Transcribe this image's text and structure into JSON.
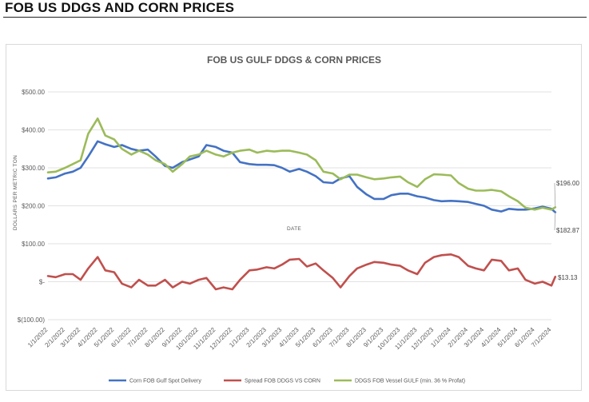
{
  "page": {
    "title": "FOB US DDGS AND CORN PRICES"
  },
  "chart_data": {
    "type": "line",
    "title": "FOB US GULF DDGS & CORN PRICES",
    "xlabel": "DATE",
    "ylabel": "DOLLARS PER METRIC TON",
    "ylim": [
      -100,
      500
    ],
    "y_ticks": [
      -100,
      0,
      100,
      200,
      300,
      400,
      500
    ],
    "y_tick_labels": [
      "$(100.00)",
      "$-",
      "$100.00",
      "$200.00",
      "$300.00",
      "$400.00",
      "$500.00"
    ],
    "x_start": "1/1/2022",
    "x_end": "7/1/2024",
    "x_tick_labels": [
      "1/1/2022",
      "2/1/2022",
      "3/1/2022",
      "4/1/2022",
      "5/1/2022",
      "6/1/2022",
      "7/1/2022",
      "8/1/2022",
      "9/1/2022",
      "10/1/2022",
      "11/1/2022",
      "12/1/2022",
      "1/1/2023",
      "2/1/2023",
      "3/1/2023",
      "4/1/2023",
      "5/1/2023",
      "6/1/2023",
      "7/1/2023",
      "8/1/2023",
      "9/1/2023",
      "10/1/2023",
      "11/1/2023",
      "12/1/2023",
      "1/1/2024",
      "2/1/2024",
      "3/1/2024",
      "4/1/2024",
      "5/1/2024",
      "6/1/2024",
      "7/1/2024"
    ],
    "grid": true,
    "legend_position": "bottom",
    "x": [
      "1/1/2022",
      "1/15/2022",
      "2/1/2022",
      "2/15/2022",
      "3/1/2022",
      "3/15/2022",
      "4/1/2022",
      "4/15/2022",
      "5/1/2022",
      "5/15/2022",
      "6/1/2022",
      "6/15/2022",
      "7/1/2022",
      "7/15/2022",
      "8/1/2022",
      "8/15/2022",
      "9/1/2022",
      "9/15/2022",
      "10/1/2022",
      "10/15/2022",
      "11/1/2022",
      "11/15/2022",
      "12/1/2022",
      "12/15/2022",
      "1/1/2023",
      "1/15/2023",
      "2/1/2023",
      "2/15/2023",
      "3/1/2023",
      "3/15/2023",
      "4/1/2023",
      "4/15/2023",
      "5/1/2023",
      "5/15/2023",
      "6/1/2023",
      "6/15/2023",
      "7/1/2023",
      "7/15/2023",
      "8/1/2023",
      "8/15/2023",
      "9/1/2023",
      "9/15/2023",
      "10/1/2023",
      "10/15/2023",
      "11/1/2023",
      "11/15/2023",
      "12/1/2023",
      "12/15/2023",
      "1/1/2024",
      "1/15/2024",
      "2/1/2024",
      "2/15/2024",
      "3/1/2024",
      "3/15/2024",
      "4/1/2024",
      "4/15/2024",
      "5/1/2024",
      "5/15/2024",
      "6/1/2024",
      "6/15/2024",
      "7/1/2024",
      "7/8/2024"
    ],
    "series": [
      {
        "name": "Corn FOB Gulf Spot Delivery",
        "color": "#4472c4",
        "values": [
          272,
          275,
          285,
          290,
          300,
          330,
          370,
          362,
          355,
          360,
          350,
          345,
          348,
          330,
          305,
          300,
          315,
          322,
          330,
          360,
          355,
          345,
          340,
          315,
          310,
          308,
          308,
          307,
          300,
          290,
          297,
          290,
          278,
          262,
          260,
          272,
          278,
          250,
          230,
          218,
          218,
          228,
          232,
          232,
          225,
          222,
          215,
          212,
          213,
          212,
          210,
          205,
          200,
          190,
          185,
          192,
          190,
          190,
          193,
          198,
          192,
          182.87
        ]
      },
      {
        "name": "Spread FOB DDGS VS CORN",
        "color": "#c0504d",
        "values": [
          15,
          12,
          20,
          20,
          5,
          35,
          65,
          30,
          25,
          -5,
          -15,
          5,
          -10,
          -10,
          5,
          -15,
          0,
          -5,
          5,
          10,
          -20,
          -15,
          -20,
          5,
          30,
          32,
          38,
          35,
          45,
          58,
          60,
          40,
          48,
          30,
          10,
          -15,
          15,
          35,
          45,
          52,
          50,
          45,
          42,
          30,
          20,
          50,
          65,
          70,
          72,
          65,
          42,
          35,
          30,
          58,
          55,
          30,
          35,
          5,
          -5,
          0,
          -10,
          13.13
        ]
      },
      {
        "name": "DDGS FOB Vessel GULF  (min. 36 % Profat)",
        "color": "#9bbb59",
        "values": [
          288,
          290,
          300,
          310,
          320,
          390,
          430,
          385,
          375,
          350,
          335,
          345,
          335,
          320,
          310,
          290,
          310,
          330,
          335,
          345,
          335,
          330,
          340,
          345,
          348,
          340,
          345,
          343,
          345,
          345,
          340,
          335,
          320,
          290,
          285,
          270,
          282,
          282,
          275,
          270,
          272,
          275,
          277,
          262,
          250,
          270,
          283,
          282,
          280,
          260,
          245,
          240,
          240,
          242,
          238,
          225,
          212,
          195,
          190,
          195,
          190,
          196
        ]
      }
    ],
    "annotations": [
      {
        "label": "$196.00",
        "series": 2
      },
      {
        "label": "$182.87",
        "series": 0
      },
      {
        "label": "$13.13",
        "series": 1
      }
    ]
  }
}
